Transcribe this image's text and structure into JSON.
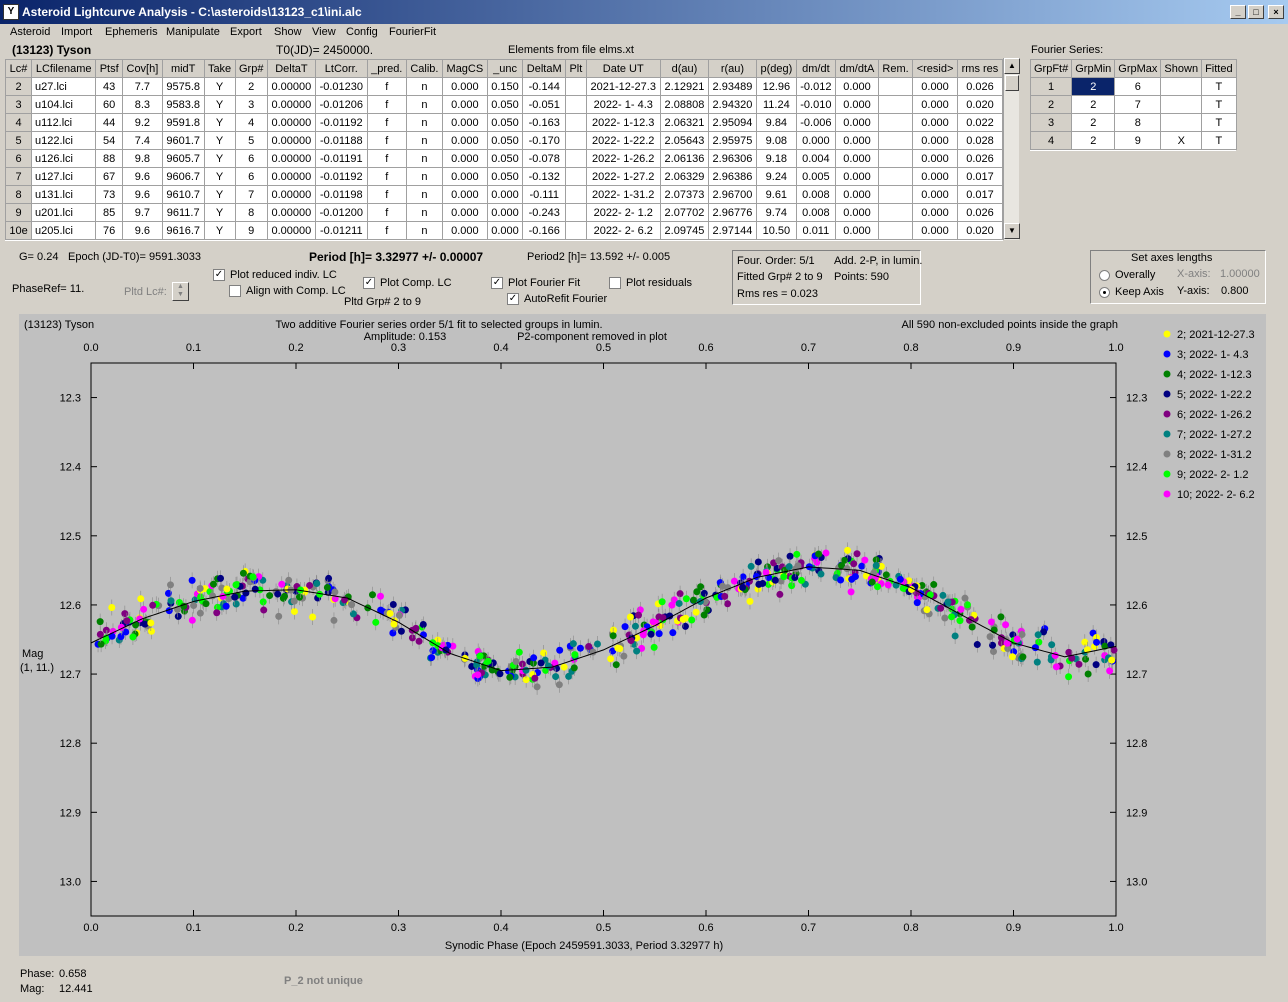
{
  "window": {
    "title": "Asteroid Lightcurve Analysis - C:\\asteroids\\13123_c1\\ini.alc",
    "min": "_",
    "max": "□",
    "close": "×"
  },
  "menu": [
    "Asteroid",
    "Import",
    "Ephemeris",
    "Manipulate",
    "Export",
    "Show",
    "View",
    "Config",
    "FourierFit"
  ],
  "header": {
    "asteroid": "(13123) Tyson",
    "t0": "T0(JD)= 2450000.",
    "elements": "Elements from file elms.xt"
  },
  "lc_table": {
    "columns": [
      "Lc#",
      "LCfilename",
      "Ptsf",
      "Cov[h]",
      "midT",
      "Take",
      "Grp#",
      "DeltaT",
      "LtCorr.",
      "_pred.",
      "Calib.",
      "MagCS",
      "_unc",
      "DeltaM",
      "Plt",
      "Date UT",
      "d(au)",
      "r(au)",
      "p(deg)",
      "dm/dt",
      "dm/dtA",
      "Rem.",
      "<resid>",
      "rms res"
    ],
    "rows": [
      [
        "2",
        "u27.lci",
        "43",
        "7.7",
        "9575.8",
        "Y",
        "2",
        "0.00000",
        "-0.01230",
        "f",
        "n",
        "0.000",
        "0.150",
        "-0.144",
        "",
        "2021-12-27.3",
        "2.12921",
        "2.93489",
        "12.96",
        "-0.012",
        "0.000",
        "",
        "0.000",
        "0.026"
      ],
      [
        "3",
        "u104.lci",
        "60",
        "8.3",
        "9583.8",
        "Y",
        "3",
        "0.00000",
        "-0.01206",
        "f",
        "n",
        "0.000",
        "0.050",
        "-0.051",
        "",
        "2022- 1- 4.3",
        "2.08808",
        "2.94320",
        "11.24",
        "-0.010",
        "0.000",
        "",
        "0.000",
        "0.020"
      ],
      [
        "4",
        "u112.lci",
        "44",
        "9.2",
        "9591.8",
        "Y",
        "4",
        "0.00000",
        "-0.01192",
        "f",
        "n",
        "0.000",
        "0.050",
        "-0.163",
        "",
        "2022- 1-12.3",
        "2.06321",
        "2.95094",
        "9.84",
        "-0.006",
        "0.000",
        "",
        "0.000",
        "0.022"
      ],
      [
        "5",
        "u122.lci",
        "54",
        "7.4",
        "9601.7",
        "Y",
        "5",
        "0.00000",
        "-0.01188",
        "f",
        "n",
        "0.000",
        "0.050",
        "-0.170",
        "",
        "2022- 1-22.2",
        "2.05643",
        "2.95975",
        "9.08",
        "0.000",
        "0.000",
        "",
        "0.000",
        "0.028"
      ],
      [
        "6",
        "u126.lci",
        "88",
        "9.8",
        "9605.7",
        "Y",
        "6",
        "0.00000",
        "-0.01191",
        "f",
        "n",
        "0.000",
        "0.050",
        "-0.078",
        "",
        "2022- 1-26.2",
        "2.06136",
        "2.96306",
        "9.18",
        "0.004",
        "0.000",
        "",
        "0.000",
        "0.026"
      ],
      [
        "7",
        "u127.lci",
        "67",
        "9.6",
        "9606.7",
        "Y",
        "6",
        "0.00000",
        "-0.01192",
        "f",
        "n",
        "0.000",
        "0.050",
        "-0.132",
        "",
        "2022- 1-27.2",
        "2.06329",
        "2.96386",
        "9.24",
        "0.005",
        "0.000",
        "",
        "0.000",
        "0.017"
      ],
      [
        "8",
        "u131.lci",
        "73",
        "9.6",
        "9610.7",
        "Y",
        "7",
        "0.00000",
        "-0.01198",
        "f",
        "n",
        "0.000",
        "0.000",
        "-0.111",
        "",
        "2022- 1-31.2",
        "2.07373",
        "2.96700",
        "9.61",
        "0.008",
        "0.000",
        "",
        "0.000",
        "0.017"
      ],
      [
        "9",
        "u201.lci",
        "85",
        "9.7",
        "9611.7",
        "Y",
        "8",
        "0.00000",
        "-0.01200",
        "f",
        "n",
        "0.000",
        "0.000",
        "-0.243",
        "",
        "2022- 2- 1.2",
        "2.07702",
        "2.96776",
        "9.74",
        "0.008",
        "0.000",
        "",
        "0.000",
        "0.026"
      ],
      [
        "10e",
        "u205.lci",
        "76",
        "9.6",
        "9616.7",
        "Y",
        "9",
        "0.00000",
        "-0.01211",
        "f",
        "n",
        "0.000",
        "0.000",
        "-0.166",
        "",
        "2022- 2- 6.2",
        "2.09745",
        "2.97144",
        "10.50",
        "0.011",
        "0.000",
        "",
        "0.000",
        "0.020"
      ]
    ]
  },
  "fourier_series": {
    "title": "Fourier Series:",
    "columns": [
      "GrpFt#",
      "GrpMin",
      "GrpMax",
      "Shown",
      "Fitted"
    ],
    "rows": [
      [
        "1",
        "2",
        "6",
        "",
        "T"
      ],
      [
        "2",
        "2",
        "7",
        "",
        "T"
      ],
      [
        "3",
        "2",
        "8",
        "",
        "T"
      ],
      [
        "4",
        "2",
        "9",
        "X",
        "T"
      ]
    ]
  },
  "info": {
    "g": "G= 0.24",
    "epoch": "Epoch (JD-T0)= 9591.3033",
    "period": "Period [h]= 3.32977 +/- 0.00007",
    "period2": "Period2 [h]= 13.592 +/- 0.005",
    "phaseref": "PhaseRef= 11.",
    "pltd_lc": "Pltd Lc#:",
    "pltd_grp": "Pltd Grp#  2  to  9"
  },
  "options": {
    "plot_reduced": "Plot reduced indiv. LC",
    "align": "Align with Comp. LC",
    "plot_comp": "Plot Comp. LC",
    "plot_fourier": "Plot Fourier Fit",
    "autorefit": "AutoRefit Fourier",
    "plot_residuals": "Plot residuals",
    "check": "✓"
  },
  "fit_info": {
    "order": "Four. Order:  5/1",
    "add": "Add. 2-P, in lumin.",
    "fitted": "Fitted Grp# 2 to 9",
    "points": "Points: 590",
    "rms": "Rms res       = 0.023"
  },
  "axes_box": {
    "title": "Set axes lengths",
    "overall": "Overally",
    "keep": "Keep Axis",
    "xaxis": "X-axis:",
    "xval": "1.00000",
    "yaxis": "Y-axis:",
    "yval": "0.800"
  },
  "chart_data": {
    "type": "scatter",
    "title": "Two additive Fourier series order 5/1 fit to selected groups in lumin.",
    "subtitle_left": "(13123) Tyson",
    "amplitude": "Amplitude: 0.153",
    "p2note": "P2-component removed in plot",
    "right_note": "All 590 non-excluded points inside the graph",
    "xlabel": "Synodic Phase (Epoch 2459591.3033, Period 3.32977 h)",
    "ylabel": "Mag",
    "ylabel2": "(1, 11.)",
    "xlim": [
      0.0,
      1.0
    ],
    "ylim": [
      13.05,
      12.25
    ],
    "y_inverted": true,
    "x_ticks": [
      "0.0",
      "0.1",
      "0.2",
      "0.3",
      "0.4",
      "0.5",
      "0.6",
      "0.7",
      "0.8",
      "0.9",
      "1.0"
    ],
    "y_ticks": [
      "12.3",
      "12.4",
      "12.5",
      "12.6",
      "12.7",
      "12.8",
      "12.9",
      "13.0"
    ],
    "fit_curve": {
      "x": [
        0.0,
        0.05,
        0.1,
        0.15,
        0.2,
        0.25,
        0.3,
        0.35,
        0.4,
        0.45,
        0.5,
        0.55,
        0.6,
        0.65,
        0.7,
        0.75,
        0.8,
        0.85,
        0.9,
        0.95,
        1.0
      ],
      "y": [
        12.655,
        12.62,
        12.595,
        12.58,
        12.578,
        12.59,
        12.625,
        12.67,
        12.695,
        12.69,
        12.665,
        12.63,
        12.59,
        12.56,
        12.545,
        12.55,
        12.575,
        12.615,
        12.655,
        12.675,
        12.66
      ]
    },
    "series": [
      {
        "name": "2; 2021-12-27.3",
        "color": "#ffff00"
      },
      {
        "name": "3; 2022- 1- 4.3",
        "color": "#0000ff"
      },
      {
        "name": "4; 2022- 1-12.3",
        "color": "#008000"
      },
      {
        "name": "5; 2022- 1-22.2",
        "color": "#000080"
      },
      {
        "name": "6; 2022- 1-26.2",
        "color": "#800080"
      },
      {
        "name": "7; 2022- 1-27.2",
        "color": "#008080"
      },
      {
        "name": "8; 2022- 1-31.2",
        "color": "#808080"
      },
      {
        "name": "9; 2022- 2- 1.2",
        "color": "#00ff00"
      },
      {
        "name": "10; 2022- 2- 6.2",
        "color": "#ff00ff"
      }
    ]
  },
  "status": {
    "phase_label": "Phase:",
    "phase": "0.658",
    "mag_label": "Mag:",
    "mag": "12.441",
    "p2": "P_2 not unique"
  }
}
